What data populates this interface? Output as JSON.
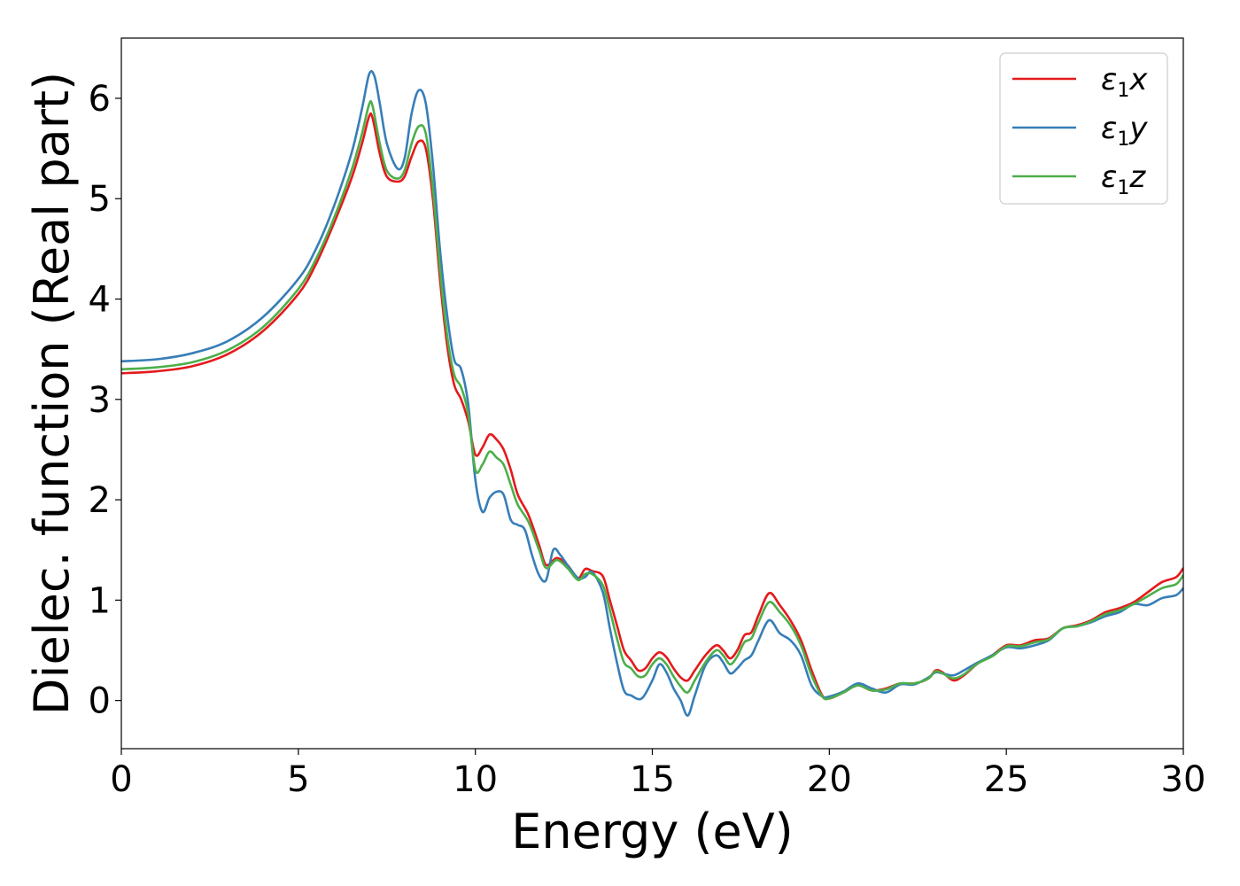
{
  "chart_data": {
    "type": "line",
    "xlabel": "Energy (eV)",
    "ylabel": "Dielec. function (Real part)",
    "xlim": [
      0,
      30
    ],
    "ylim": [
      -0.48,
      6.6
    ],
    "xticks": [
      0,
      5,
      10,
      15,
      20,
      25,
      30
    ],
    "yticks": [
      0,
      1,
      2,
      3,
      4,
      5,
      6
    ],
    "grid": false,
    "legend_position": "top-right",
    "series": [
      {
        "name": "x",
        "legend_base": "ε",
        "legend_sub": "1",
        "legend_tail": "x",
        "color": "#e41a1c",
        "points": [
          [
            0,
            3.26
          ],
          [
            1,
            3.28
          ],
          [
            2,
            3.33
          ],
          [
            3,
            3.45
          ],
          [
            4,
            3.68
          ],
          [
            5,
            4.05
          ],
          [
            5.5,
            4.35
          ],
          [
            6,
            4.75
          ],
          [
            6.5,
            5.2
          ],
          [
            6.8,
            5.55
          ],
          [
            7.0,
            5.82
          ],
          [
            7.1,
            5.8
          ],
          [
            7.3,
            5.45
          ],
          [
            7.5,
            5.22
          ],
          [
            7.8,
            5.17
          ],
          [
            8.0,
            5.22
          ],
          [
            8.2,
            5.42
          ],
          [
            8.4,
            5.57
          ],
          [
            8.6,
            5.5
          ],
          [
            8.8,
            5.0
          ],
          [
            9.0,
            4.2
          ],
          [
            9.2,
            3.55
          ],
          [
            9.4,
            3.15
          ],
          [
            9.6,
            3.0
          ],
          [
            9.8,
            2.78
          ],
          [
            10.0,
            2.45
          ],
          [
            10.2,
            2.52
          ],
          [
            10.4,
            2.65
          ],
          [
            10.6,
            2.6
          ],
          [
            10.8,
            2.5
          ],
          [
            11.0,
            2.3
          ],
          [
            11.2,
            2.05
          ],
          [
            11.5,
            1.85
          ],
          [
            11.8,
            1.55
          ],
          [
            12.0,
            1.35
          ],
          [
            12.3,
            1.42
          ],
          [
            12.6,
            1.35
          ],
          [
            12.9,
            1.22
          ],
          [
            13.1,
            1.31
          ],
          [
            13.3,
            1.29
          ],
          [
            13.6,
            1.24
          ],
          [
            13.8,
            1.0
          ],
          [
            14.0,
            0.75
          ],
          [
            14.2,
            0.5
          ],
          [
            14.4,
            0.4
          ],
          [
            14.6,
            0.3
          ],
          [
            14.8,
            0.32
          ],
          [
            15.0,
            0.42
          ],
          [
            15.2,
            0.48
          ],
          [
            15.4,
            0.43
          ],
          [
            15.6,
            0.32
          ],
          [
            15.8,
            0.23
          ],
          [
            16.0,
            0.2
          ],
          [
            16.2,
            0.3
          ],
          [
            16.5,
            0.45
          ],
          [
            16.8,
            0.55
          ],
          [
            17.0,
            0.5
          ],
          [
            17.2,
            0.42
          ],
          [
            17.4,
            0.5
          ],
          [
            17.6,
            0.65
          ],
          [
            17.8,
            0.68
          ],
          [
            18.0,
            0.85
          ],
          [
            18.3,
            1.07
          ],
          [
            18.6,
            0.95
          ],
          [
            18.9,
            0.8
          ],
          [
            19.2,
            0.6
          ],
          [
            19.5,
            0.3
          ],
          [
            19.8,
            0.05
          ],
          [
            20.0,
            0.02
          ],
          [
            20.4,
            0.08
          ],
          [
            20.8,
            0.15
          ],
          [
            21.2,
            0.1
          ],
          [
            21.6,
            0.12
          ],
          [
            22.0,
            0.17
          ],
          [
            22.4,
            0.17
          ],
          [
            22.8,
            0.22
          ],
          [
            23.0,
            0.3
          ],
          [
            23.2,
            0.28
          ],
          [
            23.5,
            0.2
          ],
          [
            23.8,
            0.25
          ],
          [
            24.2,
            0.37
          ],
          [
            24.6,
            0.45
          ],
          [
            25.0,
            0.55
          ],
          [
            25.4,
            0.55
          ],
          [
            25.8,
            0.6
          ],
          [
            26.2,
            0.62
          ],
          [
            26.6,
            0.72
          ],
          [
            27.0,
            0.75
          ],
          [
            27.4,
            0.8
          ],
          [
            27.8,
            0.88
          ],
          [
            28.2,
            0.92
          ],
          [
            28.6,
            0.98
          ],
          [
            29.0,
            1.08
          ],
          [
            29.4,
            1.18
          ],
          [
            29.8,
            1.23
          ],
          [
            30.0,
            1.32
          ]
        ]
      },
      {
        "name": "y",
        "legend_base": "ε",
        "legend_sub": "1",
        "legend_tail": "y",
        "color": "#377eb8",
        "points": [
          [
            0,
            3.38
          ],
          [
            1,
            3.4
          ],
          [
            2,
            3.46
          ],
          [
            3,
            3.58
          ],
          [
            4,
            3.82
          ],
          [
            5,
            4.2
          ],
          [
            5.5,
            4.5
          ],
          [
            6,
            4.92
          ],
          [
            6.5,
            5.45
          ],
          [
            6.8,
            5.9
          ],
          [
            7.0,
            6.24
          ],
          [
            7.15,
            6.22
          ],
          [
            7.3,
            5.95
          ],
          [
            7.5,
            5.55
          ],
          [
            7.8,
            5.3
          ],
          [
            8.0,
            5.4
          ],
          [
            8.2,
            5.85
          ],
          [
            8.4,
            6.08
          ],
          [
            8.6,
            5.95
          ],
          [
            8.8,
            5.35
          ],
          [
            9.0,
            4.5
          ],
          [
            9.2,
            3.85
          ],
          [
            9.4,
            3.4
          ],
          [
            9.6,
            3.3
          ],
          [
            9.8,
            2.95
          ],
          [
            10.0,
            2.2
          ],
          [
            10.2,
            1.88
          ],
          [
            10.4,
            2.02
          ],
          [
            10.6,
            2.08
          ],
          [
            10.8,
            2.05
          ],
          [
            11.0,
            1.8
          ],
          [
            11.2,
            1.75
          ],
          [
            11.4,
            1.7
          ],
          [
            11.6,
            1.45
          ],
          [
            11.8,
            1.25
          ],
          [
            12.0,
            1.2
          ],
          [
            12.2,
            1.5
          ],
          [
            12.4,
            1.45
          ],
          [
            12.6,
            1.35
          ],
          [
            12.9,
            1.22
          ],
          [
            13.1,
            1.23
          ],
          [
            13.3,
            1.28
          ],
          [
            13.6,
            1.08
          ],
          [
            13.8,
            0.72
          ],
          [
            14.0,
            0.38
          ],
          [
            14.2,
            0.1
          ],
          [
            14.4,
            0.05
          ],
          [
            14.7,
            0.02
          ],
          [
            15.0,
            0.2
          ],
          [
            15.2,
            0.36
          ],
          [
            15.4,
            0.28
          ],
          [
            15.6,
            0.12
          ],
          [
            15.8,
            0.0
          ],
          [
            16.0,
            -0.15
          ],
          [
            16.2,
            0.05
          ],
          [
            16.5,
            0.35
          ],
          [
            16.8,
            0.45
          ],
          [
            17.0,
            0.38
          ],
          [
            17.2,
            0.27
          ],
          [
            17.4,
            0.32
          ],
          [
            17.6,
            0.4
          ],
          [
            17.8,
            0.45
          ],
          [
            18.0,
            0.6
          ],
          [
            18.3,
            0.8
          ],
          [
            18.6,
            0.67
          ],
          [
            18.9,
            0.6
          ],
          [
            19.2,
            0.45
          ],
          [
            19.5,
            0.15
          ],
          [
            19.8,
            0.04
          ],
          [
            20.0,
            0.04
          ],
          [
            20.4,
            0.09
          ],
          [
            20.8,
            0.17
          ],
          [
            21.2,
            0.12
          ],
          [
            21.6,
            0.08
          ],
          [
            22.0,
            0.16
          ],
          [
            22.4,
            0.16
          ],
          [
            22.8,
            0.23
          ],
          [
            23.0,
            0.28
          ],
          [
            23.2,
            0.27
          ],
          [
            23.5,
            0.25
          ],
          [
            23.8,
            0.3
          ],
          [
            24.2,
            0.38
          ],
          [
            24.6,
            0.45
          ],
          [
            25.0,
            0.53
          ],
          [
            25.4,
            0.52
          ],
          [
            25.8,
            0.55
          ],
          [
            26.2,
            0.6
          ],
          [
            26.6,
            0.72
          ],
          [
            27.0,
            0.74
          ],
          [
            27.4,
            0.78
          ],
          [
            27.8,
            0.84
          ],
          [
            28.2,
            0.88
          ],
          [
            28.6,
            0.96
          ],
          [
            29.0,
            0.95
          ],
          [
            29.4,
            1.02
          ],
          [
            29.8,
            1.05
          ],
          [
            30.0,
            1.12
          ]
        ]
      },
      {
        "name": "z",
        "legend_base": "ε",
        "legend_sub": "1",
        "legend_tail": "z",
        "color": "#4daf4a",
        "points": [
          [
            0,
            3.3
          ],
          [
            1,
            3.32
          ],
          [
            2,
            3.37
          ],
          [
            3,
            3.49
          ],
          [
            4,
            3.72
          ],
          [
            5,
            4.1
          ],
          [
            5.5,
            4.4
          ],
          [
            6,
            4.8
          ],
          [
            6.5,
            5.28
          ],
          [
            6.8,
            5.65
          ],
          [
            7.0,
            5.94
          ],
          [
            7.1,
            5.92
          ],
          [
            7.3,
            5.55
          ],
          [
            7.5,
            5.28
          ],
          [
            7.8,
            5.2
          ],
          [
            8.0,
            5.28
          ],
          [
            8.2,
            5.55
          ],
          [
            8.4,
            5.72
          ],
          [
            8.6,
            5.65
          ],
          [
            8.8,
            5.1
          ],
          [
            9.0,
            4.3
          ],
          [
            9.2,
            3.65
          ],
          [
            9.4,
            3.25
          ],
          [
            9.6,
            3.12
          ],
          [
            9.8,
            2.85
          ],
          [
            10.0,
            2.3
          ],
          [
            10.2,
            2.35
          ],
          [
            10.4,
            2.48
          ],
          [
            10.6,
            2.42
          ],
          [
            10.8,
            2.35
          ],
          [
            11.0,
            2.15
          ],
          [
            11.2,
            1.95
          ],
          [
            11.5,
            1.78
          ],
          [
            11.8,
            1.5
          ],
          [
            12.0,
            1.32
          ],
          [
            12.3,
            1.4
          ],
          [
            12.6,
            1.32
          ],
          [
            12.9,
            1.2
          ],
          [
            13.1,
            1.26
          ],
          [
            13.3,
            1.26
          ],
          [
            13.6,
            1.15
          ],
          [
            13.8,
            0.9
          ],
          [
            14.0,
            0.62
          ],
          [
            14.2,
            0.38
          ],
          [
            14.4,
            0.32
          ],
          [
            14.6,
            0.24
          ],
          [
            14.8,
            0.25
          ],
          [
            15.0,
            0.36
          ],
          [
            15.2,
            0.42
          ],
          [
            15.4,
            0.36
          ],
          [
            15.6,
            0.24
          ],
          [
            15.8,
            0.14
          ],
          [
            16.0,
            0.08
          ],
          [
            16.2,
            0.2
          ],
          [
            16.5,
            0.38
          ],
          [
            16.8,
            0.5
          ],
          [
            17.0,
            0.45
          ],
          [
            17.2,
            0.36
          ],
          [
            17.4,
            0.44
          ],
          [
            17.6,
            0.58
          ],
          [
            17.8,
            0.62
          ],
          [
            18.0,
            0.78
          ],
          [
            18.3,
            0.98
          ],
          [
            18.6,
            0.88
          ],
          [
            18.9,
            0.75
          ],
          [
            19.2,
            0.55
          ],
          [
            19.5,
            0.25
          ],
          [
            19.8,
            0.04
          ],
          [
            20.0,
            0.02
          ],
          [
            20.4,
            0.08
          ],
          [
            20.8,
            0.15
          ],
          [
            21.2,
            0.1
          ],
          [
            21.6,
            0.11
          ],
          [
            22.0,
            0.17
          ],
          [
            22.4,
            0.17
          ],
          [
            22.8,
            0.22
          ],
          [
            23.0,
            0.29
          ],
          [
            23.2,
            0.27
          ],
          [
            23.5,
            0.22
          ],
          [
            23.8,
            0.26
          ],
          [
            24.2,
            0.37
          ],
          [
            24.6,
            0.44
          ],
          [
            25.0,
            0.54
          ],
          [
            25.4,
            0.54
          ],
          [
            25.8,
            0.58
          ],
          [
            26.2,
            0.61
          ],
          [
            26.6,
            0.72
          ],
          [
            27.0,
            0.74
          ],
          [
            27.4,
            0.79
          ],
          [
            27.8,
            0.86
          ],
          [
            28.2,
            0.9
          ],
          [
            28.6,
            0.96
          ],
          [
            29.0,
            1.04
          ],
          [
            29.4,
            1.12
          ],
          [
            29.8,
            1.16
          ],
          [
            30.0,
            1.25
          ]
        ]
      }
    ]
  }
}
